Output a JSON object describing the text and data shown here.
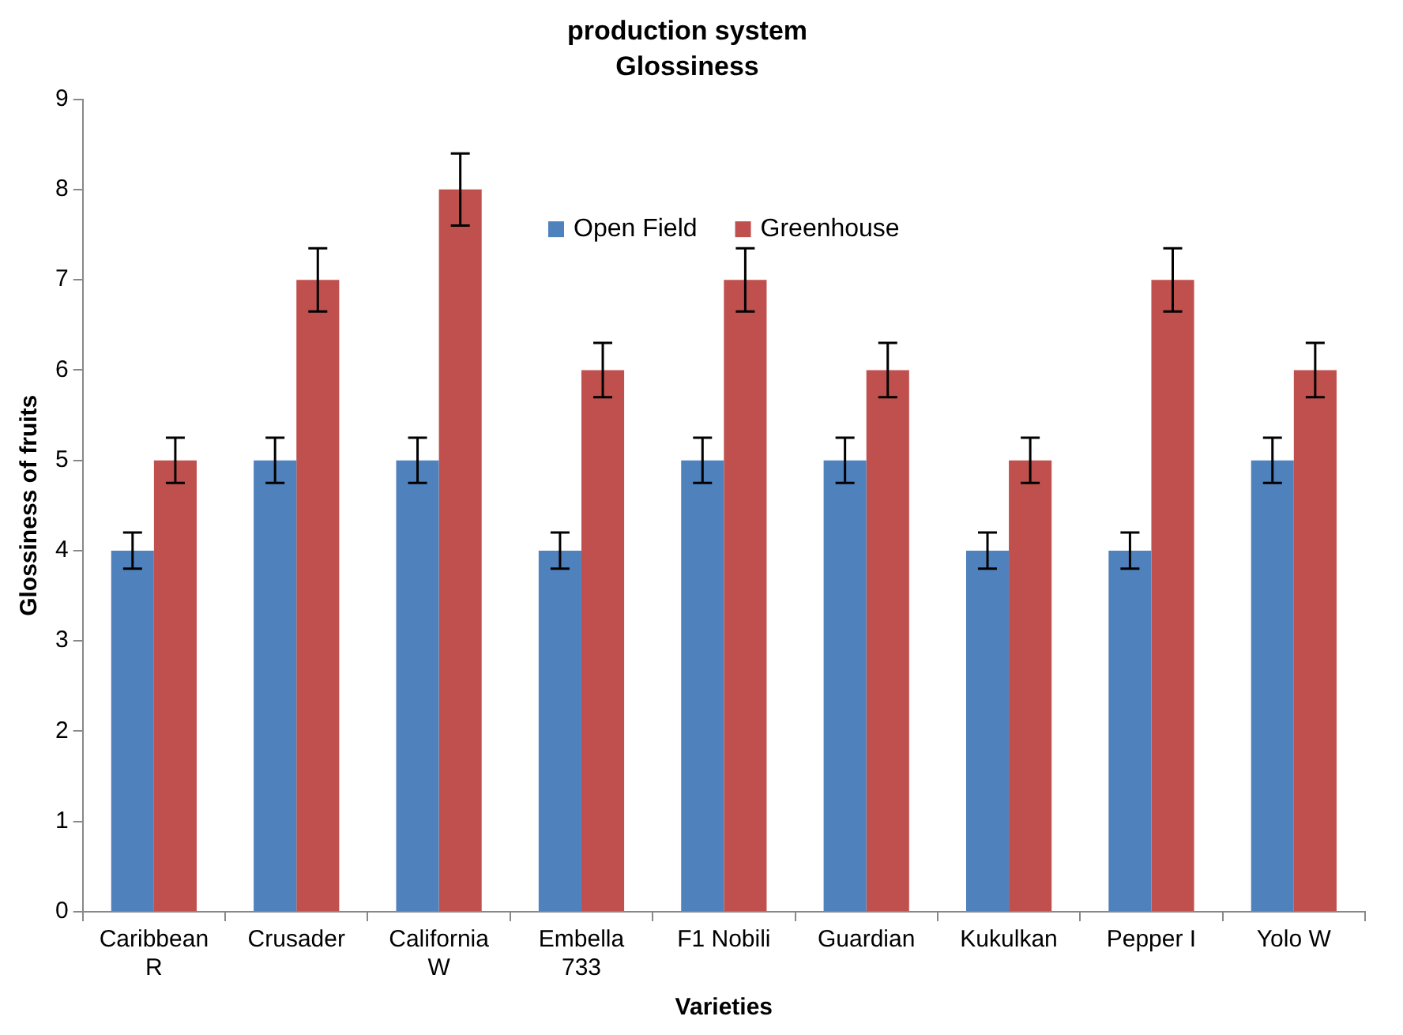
{
  "chart_data": {
    "type": "bar",
    "title": "production system",
    "subtitle": "Glossiness",
    "xlabel": "Varieties",
    "ylabel": "Glossiness of fruits",
    "categories": [
      "Caribbean R",
      "Crusader",
      "California W",
      "Embella 733",
      "F1 Nobili",
      "Guardian",
      "Kukulkan",
      "Pepper I",
      "Yolo W"
    ],
    "series": [
      {
        "name": "Open Field",
        "color": "#4f81bd",
        "values": [
          4,
          5,
          5,
          4,
          5,
          5,
          4,
          4,
          5
        ],
        "errors": [
          0.2,
          0.25,
          0.25,
          0.2,
          0.25,
          0.25,
          0.2,
          0.2,
          0.25
        ]
      },
      {
        "name": "Greenhouse",
        "color": "#c0504d",
        "values": [
          5,
          7,
          8,
          6,
          7,
          6,
          5,
          7,
          6
        ],
        "errors": [
          0.25,
          0.35,
          0.4,
          0.3,
          0.35,
          0.3,
          0.25,
          0.35,
          0.3
        ]
      }
    ],
    "ylim": [
      0,
      9
    ],
    "yticks": [
      0,
      1,
      2,
      3,
      4,
      5,
      6,
      7,
      8,
      9
    ],
    "grid": false,
    "legend": "top"
  }
}
